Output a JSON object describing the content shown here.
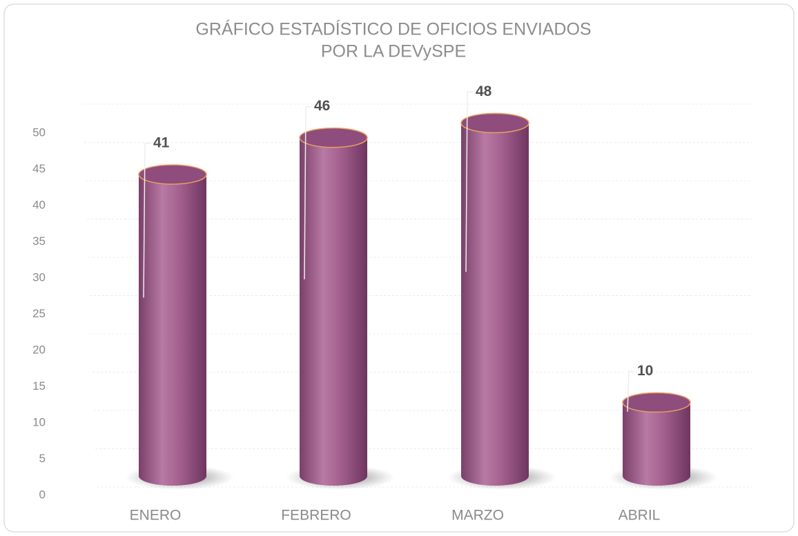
{
  "chart_data": {
    "type": "bar",
    "title": "GRÁFICO ESTADÍSTICO DE OFICIOS ENVIADOS",
    "subtitle": "POR LA DEVySPE",
    "categories": [
      "ENERO",
      "FEBRERO",
      "MARZO",
      "ABRIL"
    ],
    "values": [
      41,
      46,
      48,
      10
    ],
    "color": "#a4608f",
    "ylim": [
      0,
      50
    ],
    "yticks": [
      0,
      5,
      10,
      15,
      20,
      25,
      30,
      35,
      40,
      45,
      50
    ],
    "grid": true
  }
}
